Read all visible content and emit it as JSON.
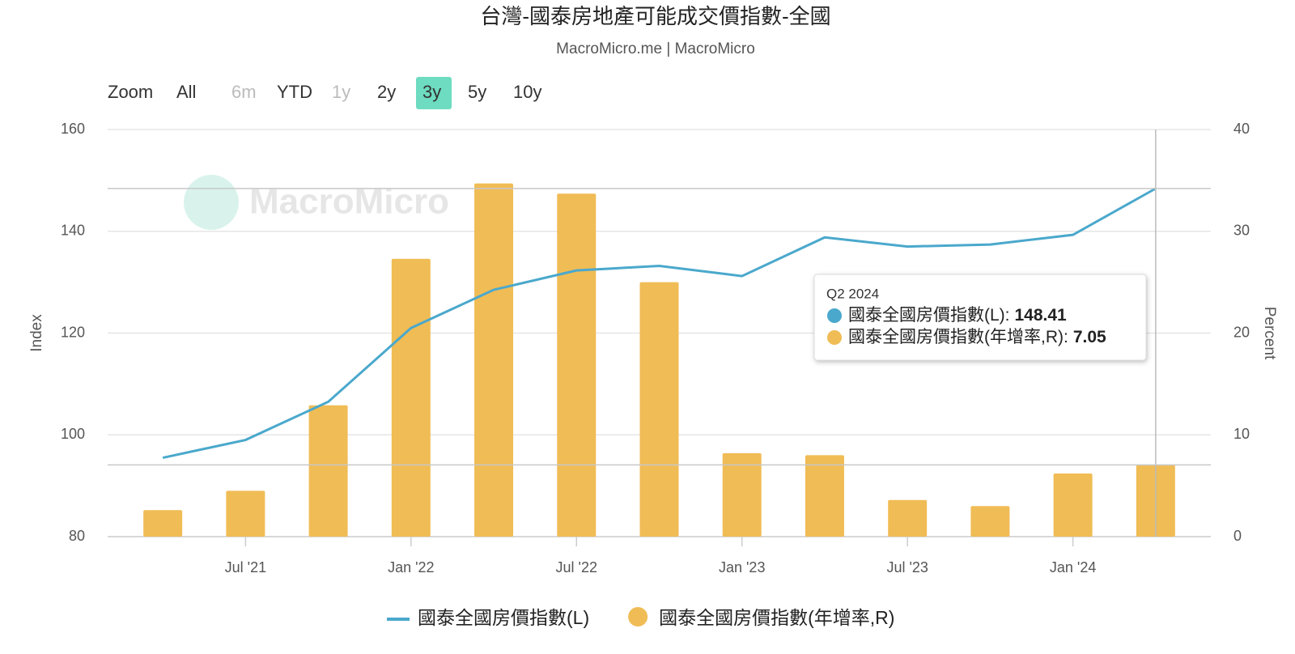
{
  "chart_data": {
    "type": "bar-line",
    "title": "台灣-國泰房地產可能成交價指數-全國",
    "subtitle": "MacroMicro.me | MacroMicro",
    "watermark": "MacroMicro",
    "range_selector": {
      "label": "Zoom",
      "buttons": [
        "All",
        "6m",
        "YTD",
        "1y",
        "2y",
        "3y",
        "5y",
        "10y"
      ],
      "selected": "3y",
      "disabled": [
        "6m",
        "1y"
      ]
    },
    "x": [
      "2021-04",
      "2021-07",
      "2021-10",
      "2022-01",
      "2022-04",
      "2022-07",
      "2022-10",
      "2023-01",
      "2023-04",
      "2023-07",
      "2023-10",
      "2024-01",
      "2024-04"
    ],
    "xlim": [
      "2021-02",
      "2024-06"
    ],
    "xticks": [
      {
        "value": "2021-07",
        "label": "Jul '21"
      },
      {
        "value": "2022-01",
        "label": "Jan '22"
      },
      {
        "value": "2022-07",
        "label": "Jul '22"
      },
      {
        "value": "2023-01",
        "label": "Jan '23"
      },
      {
        "value": "2023-07",
        "label": "Jul '23"
      },
      {
        "value": "2024-01",
        "label": "Jan '24"
      }
    ],
    "ylabel": "Index",
    "y2label": "Percent",
    "ylim": [
      80,
      160
    ],
    "yticks": [
      80,
      100,
      120,
      140,
      160
    ],
    "y2lim": [
      0,
      40
    ],
    "y2ticks": [
      0,
      10,
      20,
      30,
      40
    ],
    "grid": true,
    "legend": "bottom",
    "series": [
      {
        "name": "國泰全國房價指數(L)",
        "type": "line",
        "color": "#4aa8cc",
        "axis": "y",
        "values": [
          95.5,
          99,
          106.5,
          121,
          128.5,
          132.3,
          133.2,
          131.2,
          138.8,
          137,
          137.4,
          139.3,
          148.41
        ]
      },
      {
        "name": "國泰全國房價指數(年增率,R)",
        "type": "bar",
        "color": "#f0bc55",
        "axis": "y2",
        "values": [
          2.6,
          4.5,
          12.9,
          27.3,
          34.7,
          33.7,
          25.0,
          8.2,
          8.0,
          3.6,
          3.0,
          6.2,
          7.05
        ]
      }
    ],
    "tooltip": {
      "title": "Q2 2024",
      "labels": [
        "國泰全國房價指數(L):",
        "國泰全國房價指數(年增率,R):"
      ]
    }
  }
}
